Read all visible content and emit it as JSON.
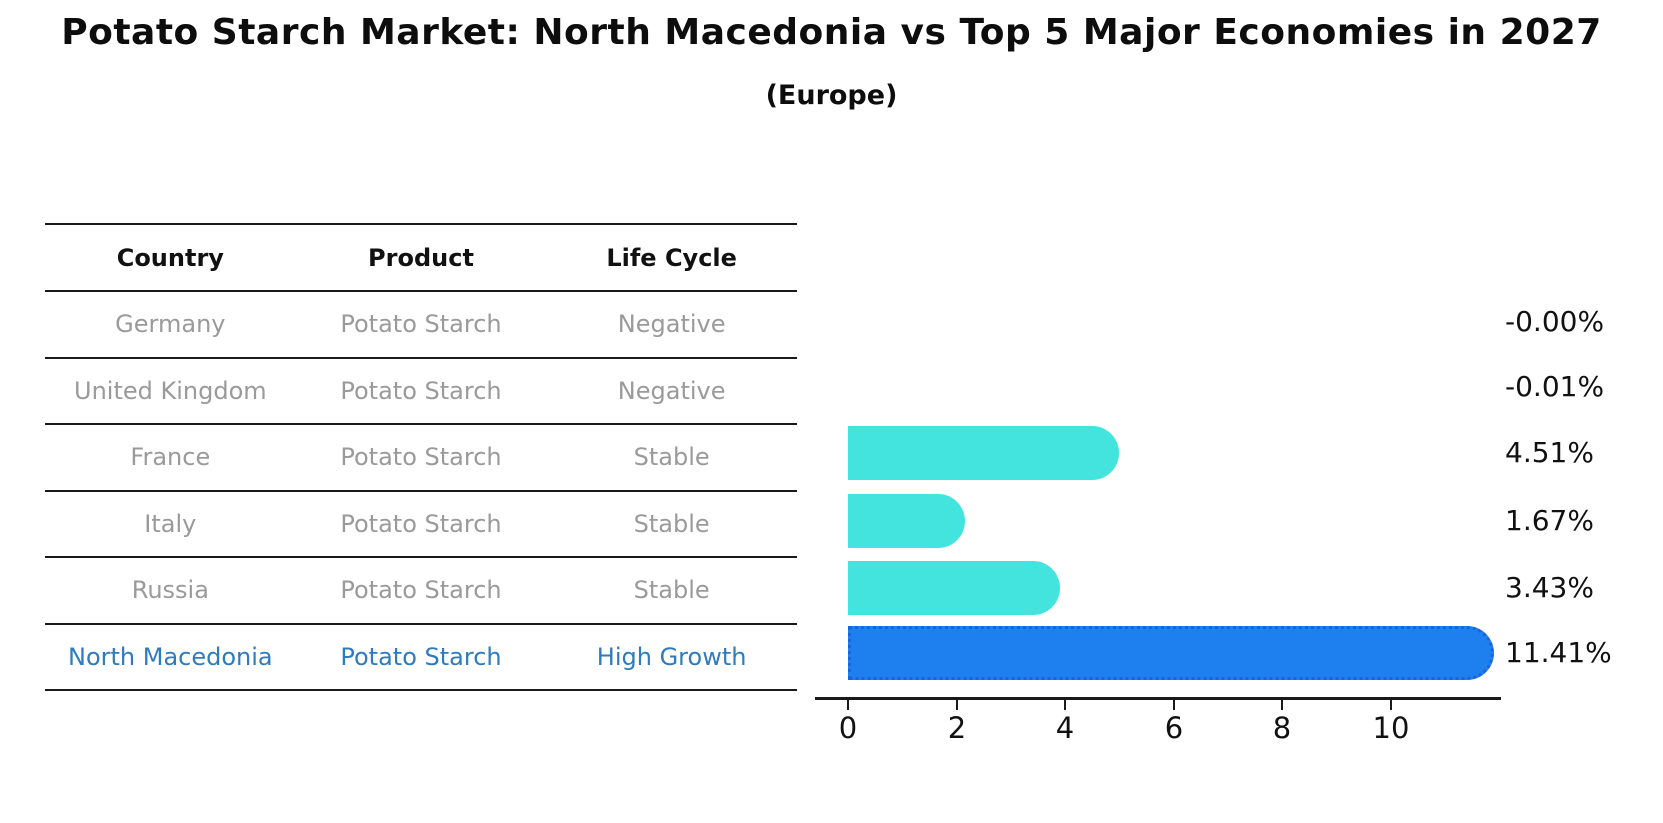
{
  "header": {
    "title": "Potato Starch Market: North Macedonia vs Top 5 Major Economies in 2027",
    "subtitle": "(Europe)"
  },
  "table": {
    "columns": [
      "Country",
      "Product",
      "Life Cycle"
    ],
    "rows": [
      {
        "country": "Germany",
        "product": "Potato Starch",
        "life_cycle": "Negative"
      },
      {
        "country": "United Kingdom",
        "product": "Potato Starch",
        "life_cycle": "Negative"
      },
      {
        "country": "France",
        "product": "Potato Starch",
        "life_cycle": "Stable"
      },
      {
        "country": "Italy",
        "product": "Potato Starch",
        "life_cycle": "Stable"
      },
      {
        "country": "Russia",
        "product": "Potato Starch",
        "life_cycle": "Stable"
      },
      {
        "country": "North Macedonia",
        "product": "Potato Starch",
        "life_cycle": "High Growth"
      }
    ]
  },
  "chart_data": {
    "type": "bar",
    "orientation": "horizontal",
    "title": "Potato Starch Market: North Macedonia vs Top 5 Major Economies in 2027",
    "subtitle": "(Europe)",
    "categories": [
      "Germany",
      "United Kingdom",
      "France",
      "Italy",
      "Russia",
      "North Macedonia"
    ],
    "values": [
      -0.0,
      -0.01,
      4.51,
      1.67,
      3.43,
      11.41
    ],
    "value_labels": [
      "-0.00%",
      "-0.01%",
      "4.51%",
      "1.67%",
      "3.43%",
      "11.41%"
    ],
    "x_ticks": [
      "0",
      "2",
      "4",
      "6",
      "8",
      "10"
    ],
    "xlim": [
      0,
      12
    ],
    "grid": false,
    "legend": "none",
    "bar_color": "#42e4dd",
    "highlight_index": 5,
    "highlight_color": "#1e80ef",
    "highlight_border_color": "#1b63d8",
    "highlight_text_color": "#2e7bbf"
  }
}
